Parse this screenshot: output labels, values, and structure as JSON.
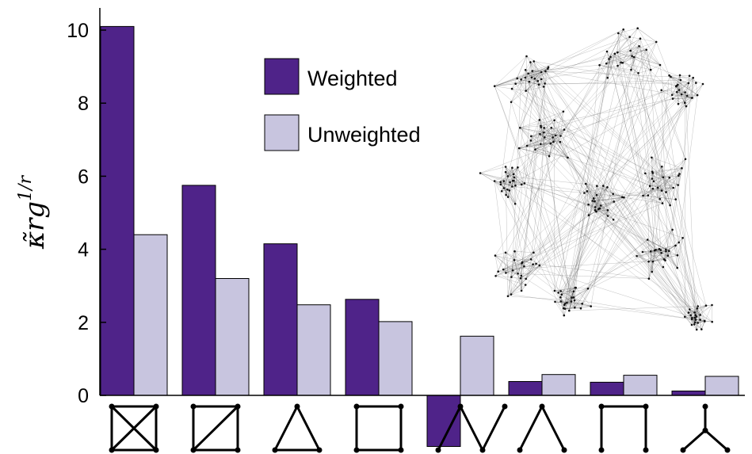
{
  "chart_data": {
    "type": "bar",
    "ylabel": "κ̃rg",
    "ylabel_superscript": "1/r",
    "ylim": [
      -1.5,
      10.5
    ],
    "yticks": [
      0,
      2,
      4,
      6,
      8,
      10
    ],
    "grid": false,
    "legend": "top-center",
    "categories": [
      "4-clique",
      "diamond",
      "triangle",
      "4-cycle",
      "3-path",
      "2-star",
      "4-path",
      "3-star"
    ],
    "series": [
      {
        "name": "Weighted",
        "color": "#4f2389",
        "values": [
          10.1,
          5.75,
          4.15,
          2.63,
          -1.4,
          0.38,
          0.36,
          0.12
        ]
      },
      {
        "name": "Unweighted",
        "color": "#c8c5df",
        "values": [
          4.4,
          3.2,
          2.48,
          2.02,
          1.62,
          0.57,
          0.55,
          0.52
        ]
      }
    ]
  }
}
